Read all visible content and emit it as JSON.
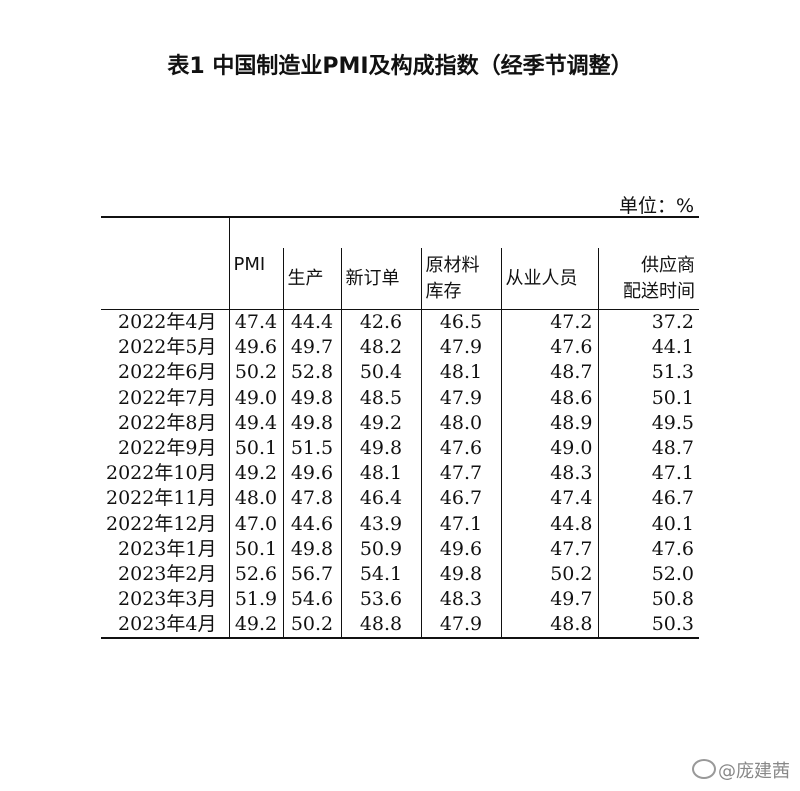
{
  "title": "表1 中国制造业PMI及构成指数（经季节调整）",
  "unit_label": "单位：%",
  "headers": {
    "pmi": "PMI",
    "production": "生产",
    "new_orders": "新订单",
    "raw_materials_1": "原材料",
    "raw_materials_2": "库存",
    "employment": "从业人员",
    "delivery_1": "供应商",
    "delivery_2": "配送时间"
  },
  "rows": [
    {
      "month": "2022年4月",
      "pmi": "47.4",
      "production": "44.4",
      "new_orders": "42.6",
      "raw_materials": "46.5",
      "employment": "47.2",
      "delivery": "37.2"
    },
    {
      "month": "2022年5月",
      "pmi": "49.6",
      "production": "49.7",
      "new_orders": "48.2",
      "raw_materials": "47.9",
      "employment": "47.6",
      "delivery": "44.1"
    },
    {
      "month": "2022年6月",
      "pmi": "50.2",
      "production": "52.8",
      "new_orders": "50.4",
      "raw_materials": "48.1",
      "employment": "48.7",
      "delivery": "51.3"
    },
    {
      "month": "2022年7月",
      "pmi": "49.0",
      "production": "49.8",
      "new_orders": "48.5",
      "raw_materials": "47.9",
      "employment": "48.6",
      "delivery": "50.1"
    },
    {
      "month": "2022年8月",
      "pmi": "49.4",
      "production": "49.8",
      "new_orders": "49.2",
      "raw_materials": "48.0",
      "employment": "48.9",
      "delivery": "49.5"
    },
    {
      "month": "2022年9月",
      "pmi": "50.1",
      "production": "51.5",
      "new_orders": "49.8",
      "raw_materials": "47.6",
      "employment": "49.0",
      "delivery": "48.7"
    },
    {
      "month": "2022年10月",
      "pmi": "49.2",
      "production": "49.6",
      "new_orders": "48.1",
      "raw_materials": "47.7",
      "employment": "48.3",
      "delivery": "47.1"
    },
    {
      "month": "2022年11月",
      "pmi": "48.0",
      "production": "47.8",
      "new_orders": "46.4",
      "raw_materials": "46.7",
      "employment": "47.4",
      "delivery": "46.7"
    },
    {
      "month": "2022年12月",
      "pmi": "47.0",
      "production": "44.6",
      "new_orders": "43.9",
      "raw_materials": "47.1",
      "employment": "44.8",
      "delivery": "40.1"
    },
    {
      "month": "2023年1月",
      "pmi": "50.1",
      "production": "49.8",
      "new_orders": "50.9",
      "raw_materials": "49.6",
      "employment": "47.7",
      "delivery": "47.6"
    },
    {
      "month": "2023年2月",
      "pmi": "52.6",
      "production": "56.7",
      "new_orders": "54.1",
      "raw_materials": "49.8",
      "employment": "50.2",
      "delivery": "52.0"
    },
    {
      "month": "2023年3月",
      "pmi": "51.9",
      "production": "54.6",
      "new_orders": "53.6",
      "raw_materials": "48.3",
      "employment": "49.7",
      "delivery": "50.8"
    },
    {
      "month": "2023年4月",
      "pmi": "49.2",
      "production": "50.2",
      "new_orders": "48.8",
      "raw_materials": "47.9",
      "employment": "48.8",
      "delivery": "50.3"
    }
  ],
  "watermark": "@庞建茜"
}
